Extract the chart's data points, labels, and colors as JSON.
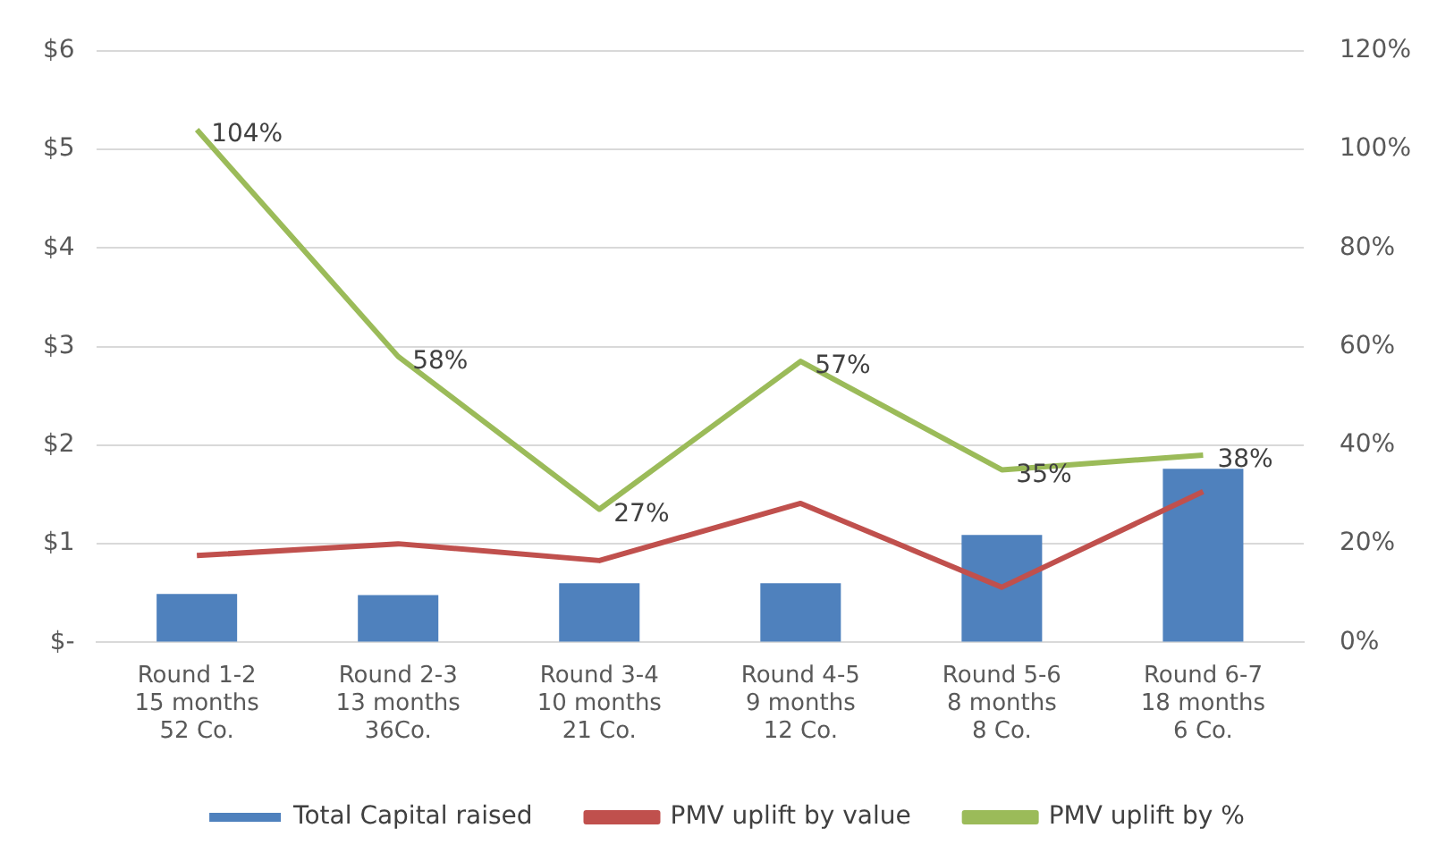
{
  "chart_data": {
    "type": "bar",
    "categories": [
      "Round 1-2\n15 months\n52 Co.",
      "Round 2-3\n13 months\n36Co.",
      "Round 3-4\n10 months\n21 Co.",
      "Round 4-5\n9 months\n12 Co.",
      "Round 5-6\n8 months\n8 Co.",
      "Round 6-7\n18 months\n6 Co."
    ],
    "series": [
      {
        "name": "Total Capital raised",
        "color": "#4f81bd",
        "values": [
          0.49,
          0.48,
          0.6,
          0.6,
          1.09,
          1.76
        ]
      },
      {
        "name": "PMV uplift by value",
        "type": "line",
        "color": "#c0504d",
        "values": [
          0.88,
          1.0,
          0.83,
          1.41,
          0.56,
          1.53
        ]
      },
      {
        "name": "PMV uplift by %",
        "type": "line",
        "axis": "y2",
        "color": "#9bbb59",
        "values": [
          104,
          58,
          27,
          57,
          35,
          38
        ],
        "value_labels": [
          "104%",
          "58%",
          "27%",
          "57%",
          "35%",
          "38%"
        ]
      }
    ],
    "ylim": [
      0,
      6
    ],
    "yticks": [
      {
        "value": 0,
        "label": "$-"
      },
      {
        "value": 1,
        "label": "$1"
      },
      {
        "value": 2,
        "label": "$2"
      },
      {
        "value": 3,
        "label": "$3"
      },
      {
        "value": 4,
        "label": "$4"
      },
      {
        "value": 5,
        "label": "$5"
      },
      {
        "value": 6,
        "label": "$6"
      }
    ],
    "y2lim": [
      0,
      120
    ],
    "y2ticks": [
      {
        "value": 0,
        "label": "0%"
      },
      {
        "value": 20,
        "label": "20%"
      },
      {
        "value": 40,
        "label": "40%"
      },
      {
        "value": 60,
        "label": "60%"
      },
      {
        "value": 80,
        "label": "80%"
      },
      {
        "value": 100,
        "label": "100%"
      },
      {
        "value": 120,
        "label": "120%"
      }
    ],
    "grid": "y",
    "legend": "bottom",
    "marker": "none",
    "line_style": "solid"
  }
}
